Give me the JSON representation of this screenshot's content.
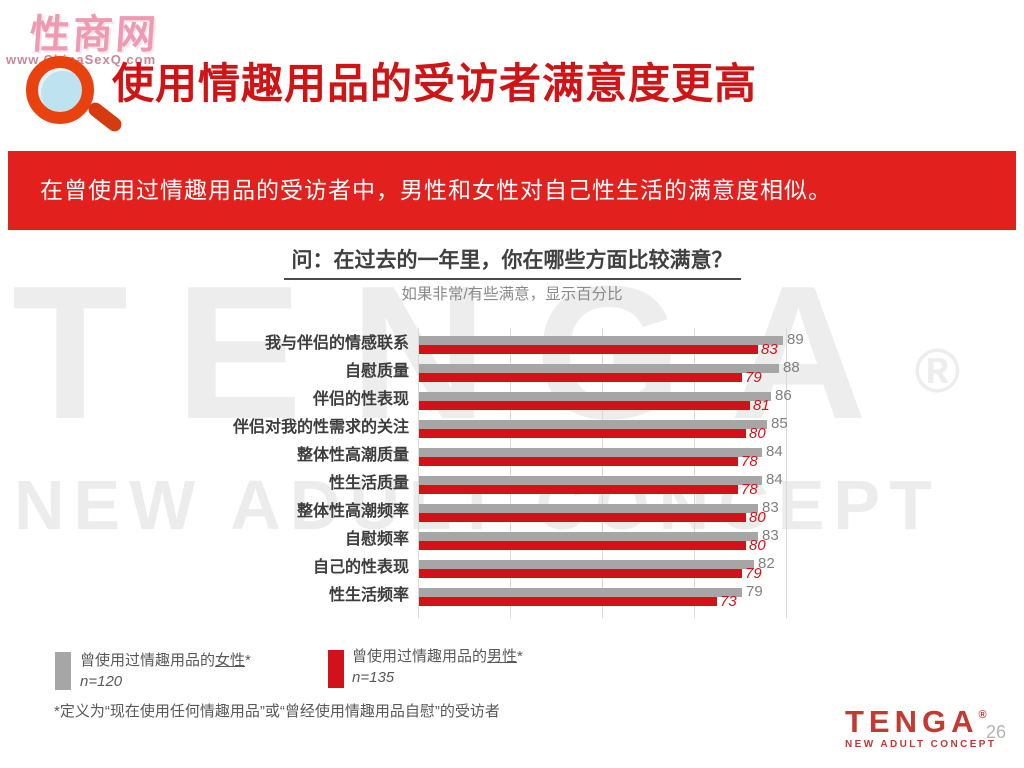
{
  "site_watermark": {
    "name": "性商网",
    "url": "www.ChinaSexQ.com"
  },
  "header": {
    "title": "使用情趣用品的受访者满意度更高",
    "banner": "在曾使用过情趣用品的受访者中，男性和女性对自己性生活的满意度相似。"
  },
  "chart_data": {
    "type": "bar",
    "orientation": "horizontal",
    "title": "问：在过去的一年里，你在哪些方面比较满意？",
    "subtitle": "如果非常/有些满意，显示百分比",
    "categories": [
      "我与伴侣的情感联系",
      "自慰质量",
      "伴侣的性表现",
      "伴侣对我的性需求的关注",
      "整体性高潮质量",
      "性生活质量",
      "整体性高潮频率",
      "自慰频率",
      "自己的性表现",
      "性生活频率"
    ],
    "series": [
      {
        "name_prefix": "曾使用过情趣用品的",
        "name_emph": "女性",
        "name_suffix": "*",
        "sample": "n=120",
        "color": "#a6a6a6",
        "value_label_color": "#7f7f7f",
        "values": [
          89,
          88,
          86,
          85,
          84,
          84,
          83,
          83,
          82,
          79
        ]
      },
      {
        "name_prefix": "曾使用过情趣用品的",
        "name_emph": "男性",
        "name_suffix": "*",
        "sample": "n=135",
        "color": "#d2121a",
        "value_label_color": "#d2121a",
        "values": [
          83,
          79,
          81,
          80,
          78,
          78,
          80,
          80,
          79,
          73
        ]
      }
    ],
    "xlim": [
      0,
      90
    ],
    "gridline_count": 5,
    "grid": true,
    "legend_position": "bottom-left"
  },
  "footnote": "*定义为“现在使用任何情趣用品”或“曾经使用情趣用品自慰”的受访者",
  "watermarks": {
    "big_text": "TENGA",
    "big_reg": "®",
    "sub_text": "NEW ADULT CONCEPT"
  },
  "footer": {
    "logo_text": "TENGA",
    "logo_reg": "®",
    "logo_sub": "NEW ADULT CONCEPT",
    "page_number": "26"
  },
  "colors": {
    "banner_bg": "#e2201d",
    "title_red": "#d01416",
    "bar_gray": "#a6a6a6",
    "bar_red": "#d2121a",
    "gridline": "#d9d9d9"
  }
}
